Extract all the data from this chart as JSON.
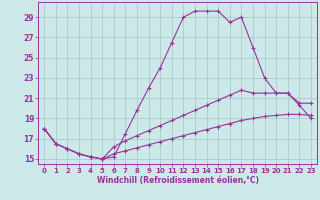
{
  "xlabel": "Windchill (Refroidissement éolien,°C)",
  "bg_color": "#cce8e8",
  "grid_color": "#aacccc",
  "line_color": "#993399",
  "xlim": [
    -0.5,
    23.5
  ],
  "ylim": [
    14.5,
    30.5
  ],
  "yticks": [
    15,
    17,
    19,
    21,
    23,
    25,
    27,
    29
  ],
  "xticks": [
    0,
    1,
    2,
    3,
    4,
    5,
    6,
    7,
    8,
    9,
    10,
    11,
    12,
    13,
    14,
    15,
    16,
    17,
    18,
    19,
    20,
    21,
    22,
    23
  ],
  "line1_x": [
    0,
    1,
    2,
    3,
    4,
    5,
    6,
    7,
    8,
    9,
    10,
    11,
    12,
    13,
    14,
    15,
    16,
    17,
    18,
    19,
    20,
    21,
    22,
    23
  ],
  "line1_y": [
    18.0,
    16.5,
    16.0,
    15.5,
    15.2,
    15.0,
    15.2,
    17.5,
    19.8,
    22.0,
    24.0,
    26.5,
    29.0,
    29.6,
    29.6,
    29.6,
    28.5,
    29.0,
    26.0,
    23.0,
    21.5,
    21.5,
    20.5,
    20.5
  ],
  "line2_x": [
    0,
    1,
    2,
    3,
    4,
    5,
    6,
    7,
    8,
    9,
    10,
    11,
    12,
    13,
    14,
    15,
    16,
    17,
    18,
    19,
    20,
    21,
    22,
    23
  ],
  "line2_y": [
    18.0,
    16.5,
    16.0,
    15.5,
    15.2,
    15.0,
    16.2,
    16.8,
    17.3,
    17.8,
    18.3,
    18.8,
    19.3,
    19.8,
    20.3,
    20.8,
    21.3,
    21.8,
    21.5,
    21.5,
    21.5,
    21.5,
    20.3,
    19.0
  ],
  "line3_x": [
    0,
    1,
    2,
    3,
    4,
    5,
    6,
    7,
    8,
    9,
    10,
    11,
    12,
    13,
    14,
    15,
    16,
    17,
    18,
    19,
    20,
    21,
    22,
    23
  ],
  "line3_y": [
    18.0,
    16.5,
    16.0,
    15.5,
    15.2,
    15.0,
    15.5,
    15.8,
    16.1,
    16.4,
    16.7,
    17.0,
    17.3,
    17.6,
    17.9,
    18.2,
    18.5,
    18.8,
    19.0,
    19.2,
    19.3,
    19.4,
    19.4,
    19.3
  ]
}
